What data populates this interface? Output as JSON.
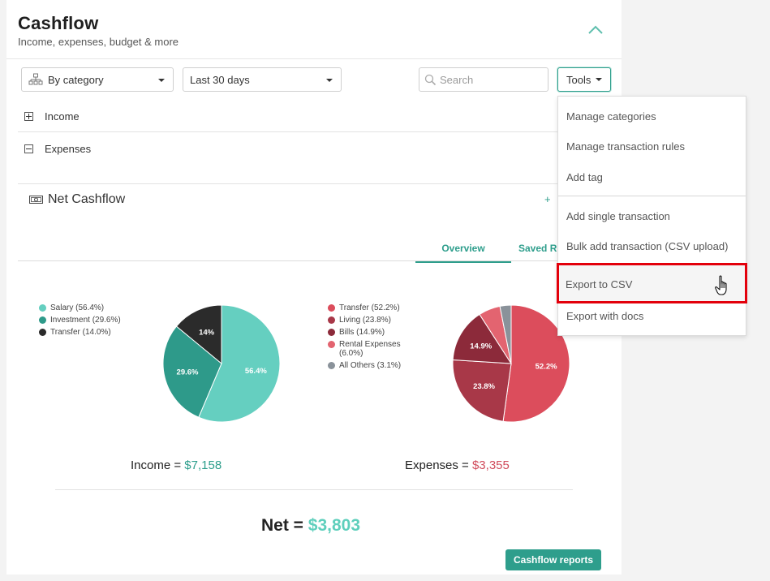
{
  "header": {
    "title": "Cashflow",
    "subtitle": "Income, expenses, budget & more"
  },
  "toolbar": {
    "group_by": "By category",
    "date_range": "Last 30 days",
    "search_placeholder": "Search",
    "tools_label": "Tools"
  },
  "rows": [
    {
      "label": "Income",
      "state": "collapsed"
    },
    {
      "label": "Expenses",
      "state": "expanded"
    }
  ],
  "net_cashflow": {
    "label": "Net Cashflow",
    "action": "+"
  },
  "tabs": [
    {
      "label": "Overview",
      "active": true
    },
    {
      "label": "Saved R",
      "active": false
    }
  ],
  "tools_menu": {
    "items": [
      "Manage categories",
      "Manage transaction rules",
      "Add tag",
      "Add single transaction",
      "Bulk add transaction (CSV upload)",
      "Export to CSV",
      "Export with docs"
    ],
    "highlighted": "Export to CSV"
  },
  "chart_data": [
    {
      "type": "pie",
      "name": "income",
      "legend": [
        {
          "label": "Salary (56.4%)",
          "color": "#65cfc0"
        },
        {
          "label": "Investment (29.6%)",
          "color": "#2e9a8a"
        },
        {
          "label": "Transfer (14.0%)",
          "color": "#2b2b2b"
        }
      ],
      "slices": [
        {
          "label": "56.4%",
          "value": 56.4,
          "color": "#65cfc0"
        },
        {
          "label": "29.6%",
          "value": 29.6,
          "color": "#2e9a8a"
        },
        {
          "label": "14%",
          "value": 14.0,
          "color": "#2b2b2b"
        }
      ]
    },
    {
      "type": "pie",
      "name": "expenses",
      "legend": [
        {
          "label": "Transfer (52.2%)",
          "color": "#dc4d5c"
        },
        {
          "label": "Living (23.8%)",
          "color": "#a83848"
        },
        {
          "label": "Bills (14.9%)",
          "color": "#8c2a3a"
        },
        {
          "label": "Rental Expenses (6.0%)",
          "color": "#e36470"
        },
        {
          "label": "All Others (3.1%)",
          "color": "#8a929a"
        }
      ],
      "slices": [
        {
          "label": "52.2%",
          "value": 52.2,
          "color": "#dc4d5c"
        },
        {
          "label": "23.8%",
          "value": 23.8,
          "color": "#a83848"
        },
        {
          "label": "14.9%",
          "value": 14.9,
          "color": "#8c2a3a"
        },
        {
          "label": "",
          "value": 6.0,
          "color": "#e36470"
        },
        {
          "label": "",
          "value": 3.1,
          "color": "#8a929a"
        }
      ]
    }
  ],
  "totals": {
    "income_label": "Income = ",
    "income_amount": "$7,158",
    "expenses_label": "Expenses = ",
    "expenses_amount": "$3,355",
    "net_label": "Net = ",
    "net_amount": "$3,803"
  },
  "reports_button": "Cashflow reports",
  "colors": {
    "accent": "#2e9e8c",
    "expense": "#d14d5d",
    "highlight_border": "#e3000b"
  }
}
